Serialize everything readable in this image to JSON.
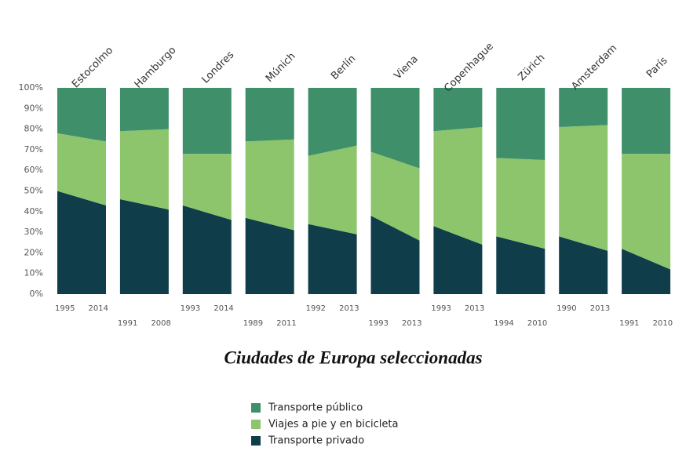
{
  "chart_data": {
    "type": "stacked_area_panels",
    "xlabel": "Ciudades de Europa seleccionadas",
    "panels": [
      {
        "name": "Estocolmo",
        "years": [
          "1995",
          "2014"
        ]
      },
      {
        "name": "Hamburgo",
        "years": [
          "1991",
          "2008"
        ]
      },
      {
        "name": "Londres",
        "years": [
          "1993",
          "2014"
        ]
      },
      {
        "name": "Múnich",
        "years": [
          "1989",
          "2011"
        ]
      },
      {
        "name": "Berlín",
        "years": [
          "1992",
          "2013"
        ]
      },
      {
        "name": "Viena",
        "years": [
          "1993",
          "2013"
        ]
      },
      {
        "name": "Copenhague",
        "years": [
          "1993",
          "2013"
        ]
      },
      {
        "name": "Zürich",
        "years": [
          "1994",
          "2010"
        ]
      },
      {
        "name": "Amsterdam",
        "years": [
          "1990",
          "2013"
        ]
      },
      {
        "name": "París",
        "years": [
          "1991",
          "2010"
        ]
      }
    ],
    "series": [
      {
        "name": "Transporte privado",
        "color": "#0f3d4a",
        "values": [
          [
            50,
            43
          ],
          [
            46,
            41
          ],
          [
            43,
            36
          ],
          [
            37,
            31
          ],
          [
            34,
            29
          ],
          [
            38,
            26
          ],
          [
            33,
            24
          ],
          [
            28,
            22
          ],
          [
            28,
            21
          ],
          [
            22,
            12
          ]
        ]
      },
      {
        "name": "Viajes a pie y en bicicleta",
        "color": "#8cc56b",
        "values": [
          [
            28,
            31
          ],
          [
            33,
            39
          ],
          [
            25,
            32
          ],
          [
            37,
            44
          ],
          [
            33,
            43
          ],
          [
            31,
            35
          ],
          [
            46,
            57
          ],
          [
            38,
            43
          ],
          [
            53,
            61
          ],
          [
            46,
            56
          ]
        ]
      },
      {
        "name": "Transporte público",
        "color": "#3e8f6a",
        "values": [
          [
            22,
            26
          ],
          [
            21,
            20
          ],
          [
            32,
            32
          ],
          [
            26,
            25
          ],
          [
            33,
            28
          ],
          [
            31,
            39
          ],
          [
            21,
            19
          ],
          [
            34,
            35
          ],
          [
            19,
            18
          ],
          [
            32,
            32
          ]
        ]
      }
    ],
    "legend_order": [
      2,
      1,
      0
    ],
    "ylim": [
      0,
      100
    ],
    "yticks": [
      {
        "value": 0,
        "label": "0%"
      },
      {
        "value": 10,
        "label": "10%"
      },
      {
        "value": 20,
        "label": "20%"
      },
      {
        "value": 30,
        "label": "30%"
      },
      {
        "value": 40,
        "label": "40%"
      },
      {
        "value": 50,
        "label": "50%"
      },
      {
        "value": 60,
        "label": "60%"
      },
      {
        "value": 70,
        "label": "70%"
      },
      {
        "value": 80,
        "label": "80%"
      },
      {
        "value": 90,
        "label": "90%"
      },
      {
        "value": 100,
        "label": "100%"
      }
    ]
  }
}
